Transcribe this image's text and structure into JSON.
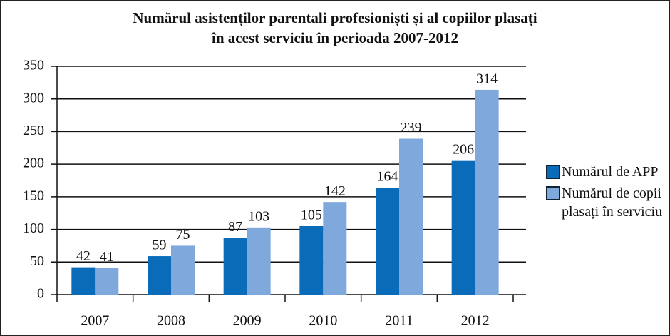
{
  "chart_data": {
    "type": "bar",
    "title": [
      "Numărul asistenților parentali profesioniști și al copiilor plasați",
      "în acest serviciu în perioada 2007-2012"
    ],
    "categories": [
      "2007",
      "2008",
      "2009",
      "2010",
      "2011",
      "2012"
    ],
    "series": [
      {
        "name": "Numărul de APP",
        "color": "#0a6cb8",
        "values": [
          42,
          59,
          87,
          105,
          164,
          206
        ]
      },
      {
        "name": "Numărul de copii plasați în serviciu",
        "color": "#7fa8dc",
        "values": [
          41,
          75,
          103,
          142,
          239,
          314
        ]
      }
    ],
    "ylim": [
      0,
      350
    ],
    "yticks": [
      0,
      50,
      100,
      150,
      200,
      250,
      300,
      350
    ],
    "grid": true
  }
}
